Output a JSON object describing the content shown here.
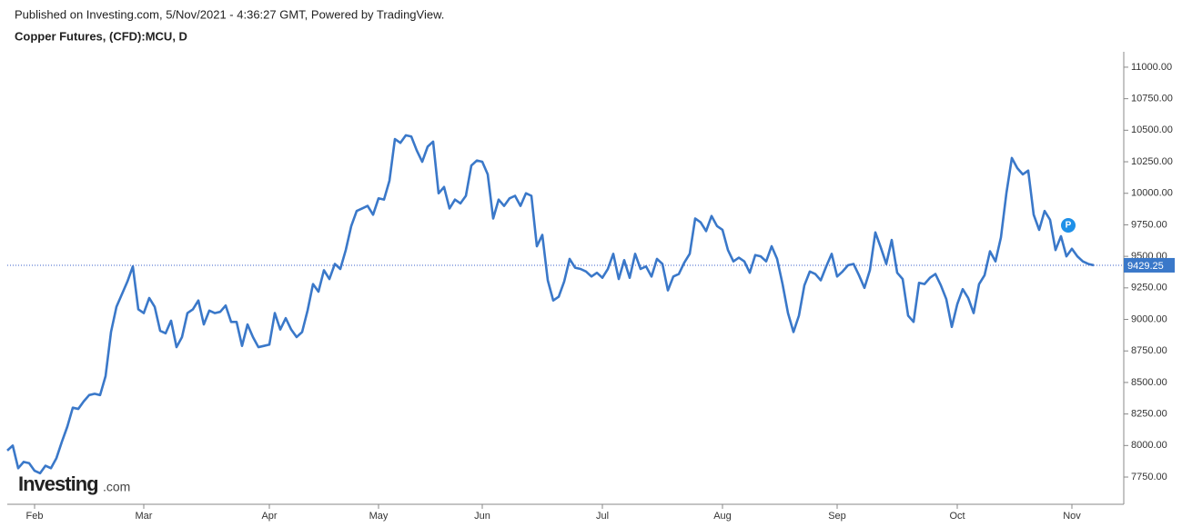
{
  "header": {
    "published": "Published on Investing.com, 5/Nov/2021 - 4:36:27 GMT, Powered by TradingView.",
    "logo": "Investing",
    "logo_suffix": ".com",
    "marker_label": "P"
  },
  "chart_data": {
    "type": "line",
    "title": "Copper Futures, (CFD):MCU, D",
    "categories": [
      null,
      null,
      null,
      null,
      null,
      "Feb",
      null,
      null,
      null,
      null,
      null,
      null,
      null,
      null,
      null,
      null,
      null,
      null,
      null,
      null,
      null,
      null,
      null,
      null,
      null,
      "Mar",
      null,
      null,
      null,
      null,
      null,
      null,
      null,
      null,
      null,
      null,
      null,
      null,
      null,
      null,
      null,
      null,
      null,
      null,
      null,
      null,
      null,
      null,
      "Apr",
      null,
      null,
      null,
      null,
      null,
      null,
      null,
      null,
      null,
      null,
      null,
      null,
      null,
      null,
      null,
      null,
      null,
      null,
      null,
      "May",
      null,
      null,
      null,
      null,
      null,
      null,
      null,
      null,
      null,
      null,
      null,
      null,
      null,
      null,
      null,
      null,
      null,
      null,
      "Jun",
      null,
      null,
      null,
      null,
      null,
      null,
      null,
      null,
      null,
      null,
      null,
      null,
      null,
      null,
      null,
      null,
      null,
      null,
      null,
      null,
      null,
      "Jul",
      null,
      null,
      null,
      null,
      null,
      null,
      null,
      null,
      null,
      null,
      null,
      null,
      null,
      null,
      null,
      null,
      null,
      null,
      null,
      null,
      null,
      "Aug",
      null,
      null,
      null,
      null,
      null,
      null,
      null,
      null,
      null,
      null,
      null,
      null,
      null,
      null,
      null,
      null,
      null,
      null,
      null,
      null,
      "Sep",
      null,
      null,
      null,
      null,
      null,
      null,
      null,
      null,
      null,
      null,
      null,
      null,
      null,
      null,
      null,
      null,
      null,
      null,
      null,
      null,
      null,
      "Oct",
      null,
      null,
      null,
      null,
      null,
      null,
      null,
      null,
      null,
      null,
      null,
      null,
      null,
      null,
      null,
      null,
      null,
      null,
      null,
      null,
      "Nov",
      null,
      null,
      null,
      null
    ],
    "series": [
      {
        "name": "Copper Futures",
        "color": "#3a78c9",
        "values": [
          7960,
          8000,
          7820,
          7870,
          7860,
          7800,
          7780,
          7840,
          7820,
          7900,
          8030,
          8150,
          8300,
          8290,
          8350,
          8400,
          8410,
          8400,
          8550,
          8900,
          9100,
          9200,
          9300,
          9420,
          9080,
          9050,
          9170,
          9100,
          8910,
          8890,
          8990,
          8780,
          8860,
          9050,
          9080,
          9150,
          8960,
          9070,
          9050,
          9060,
          9110,
          8980,
          8980,
          8790,
          8960,
          8860,
          8780,
          8790,
          8800,
          9050,
          8920,
          9010,
          8920,
          8860,
          8900,
          9070,
          9280,
          9220,
          9390,
          9320,
          9440,
          9400,
          9550,
          9740,
          9860,
          9880,
          9900,
          9830,
          9960,
          9950,
          10100,
          10430,
          10400,
          10460,
          10450,
          10340,
          10250,
          10370,
          10410,
          10000,
          10050,
          9880,
          9950,
          9920,
          9980,
          10220,
          10260,
          10250,
          10150,
          9800,
          9950,
          9900,
          9960,
          9980,
          9900,
          10000,
          9980,
          9580,
          9670,
          9310,
          9150,
          9180,
          9300,
          9480,
          9410,
          9400,
          9380,
          9340,
          9370,
          9330,
          9400,
          9520,
          9320,
          9470,
          9330,
          9520,
          9400,
          9420,
          9340,
          9480,
          9440,
          9230,
          9340,
          9360,
          9450,
          9520,
          9800,
          9770,
          9700,
          9820,
          9740,
          9710,
          9550,
          9460,
          9490,
          9460,
          9370,
          9510,
          9500,
          9460,
          9580,
          9480,
          9280,
          9050,
          8900,
          9030,
          9270,
          9380,
          9360,
          9310,
          9420,
          9520,
          9340,
          9380,
          9430,
          9440,
          9350,
          9250,
          9390,
          9690,
          9570,
          9440,
          9630,
          9370,
          9320,
          9030,
          8980,
          9290,
          9280,
          9330,
          9360,
          9270,
          9160,
          8940,
          9120,
          9240,
          9170,
          9050,
          9280,
          9350,
          9540,
          9460,
          9650,
          10000,
          10280,
          10200,
          10150,
          10180,
          9830,
          9710,
          9860,
          9790,
          9550,
          9660,
          9500,
          9560,
          9500,
          9460,
          9440,
          9429.25
        ]
      }
    ],
    "ylim": [
      7534,
      11122
    ],
    "yticks": [
      {
        "value": 7750,
        "label": "7750.00"
      },
      {
        "value": 8000,
        "label": "8000.00"
      },
      {
        "value": 8250,
        "label": "8250.00"
      },
      {
        "value": 8500,
        "label": "8500.00"
      },
      {
        "value": 8750,
        "label": "8750.00"
      },
      {
        "value": 9000,
        "label": "9000.00"
      },
      {
        "value": 9250,
        "label": "9250.00"
      },
      {
        "value": 9500,
        "label": "9500.00"
      },
      {
        "value": 9750,
        "label": "9750.00"
      },
      {
        "value": 10000,
        "label": "10000.00"
      },
      {
        "value": 10250,
        "label": "10250.00"
      },
      {
        "value": 10500,
        "label": "10500.00"
      },
      {
        "value": 10750,
        "label": "10750.00"
      },
      {
        "value": 11000,
        "label": "11000.00"
      }
    ],
    "grid": false
  }
}
